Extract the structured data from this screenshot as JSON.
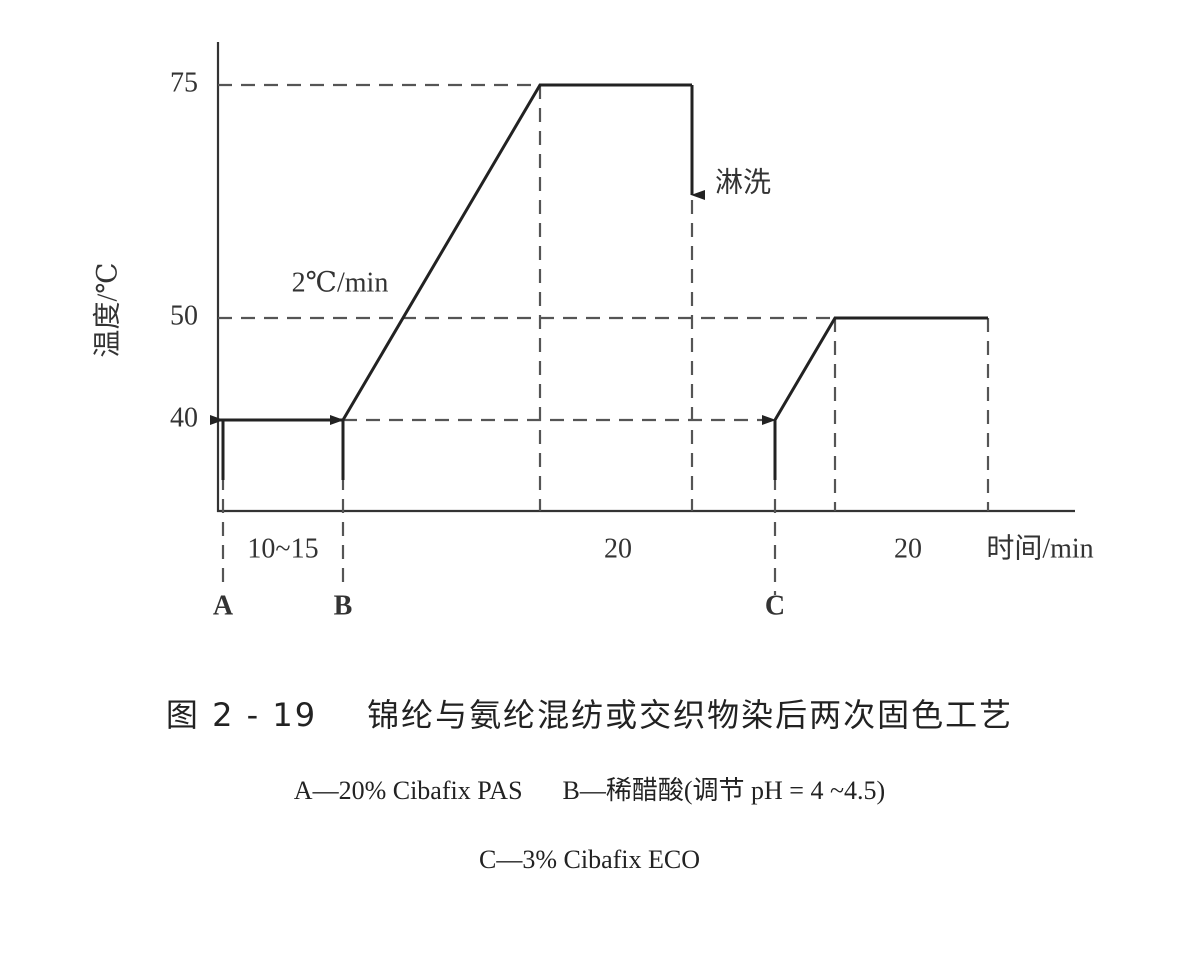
{
  "axis": {
    "y_label": "温度/℃",
    "x_label": "时间/min",
    "ticks": [
      "75",
      "50",
      "40"
    ]
  },
  "annotations": {
    "rate": "2℃/min",
    "rinse": "淋洗"
  },
  "durations": [
    "10~15",
    "20",
    "20"
  ],
  "markers": [
    "A",
    "B",
    "C"
  ],
  "caption": {
    "number": "图 2 - 19",
    "title": "锦纶与氨纶混纺或交织物染后两次固色工艺",
    "notes": [
      "A—20% Cibafix PAS",
      "B—稀醋酸(调节 pH = 4 ~4.5)",
      "C—3% Cibafix ECO"
    ]
  }
}
